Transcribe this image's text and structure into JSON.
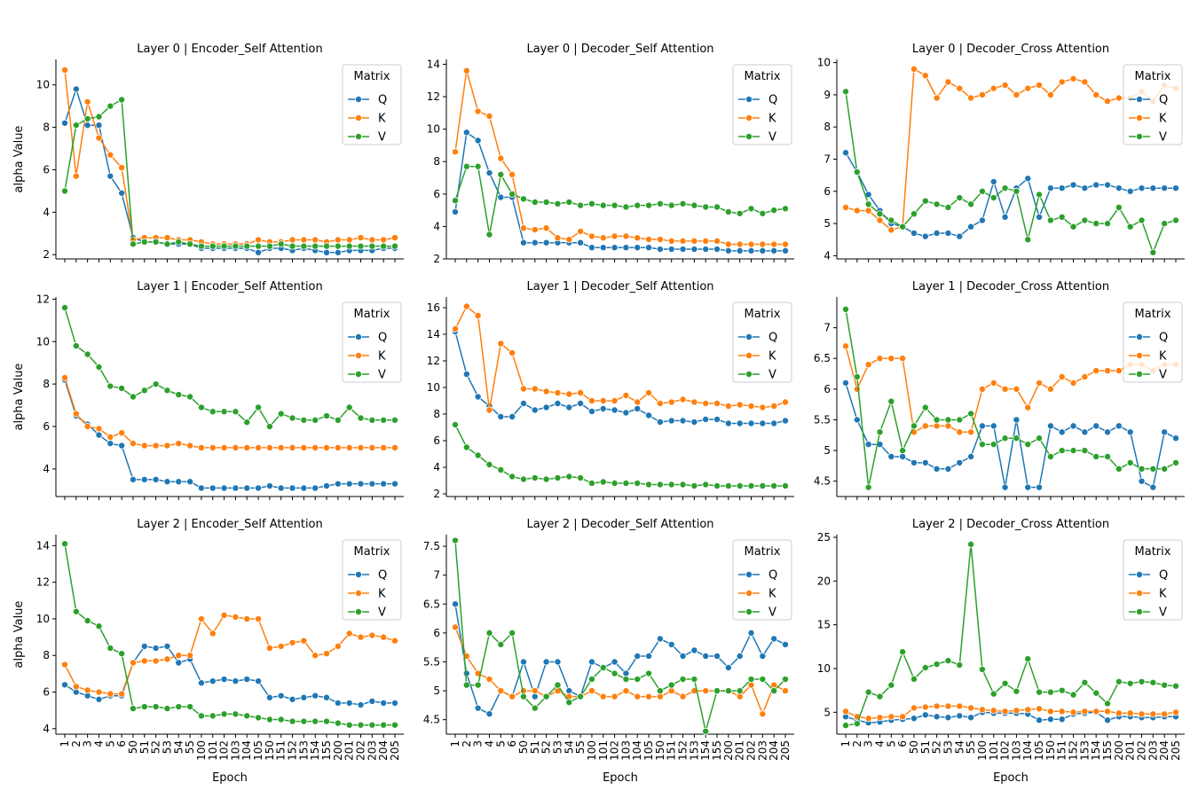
{
  "colors": {
    "Q": "#1f77b4",
    "K": "#ff7f0e",
    "V": "#2ca02c"
  },
  "legend_title": "Matrix",
  "x_categories": [
    "1",
    "2",
    "3",
    "4",
    "5",
    "6",
    "50",
    "51",
    "52",
    "53",
    "54",
    "55",
    "100",
    "101",
    "102",
    "103",
    "104",
    "105",
    "150",
    "151",
    "152",
    "153",
    "154",
    "155",
    "200",
    "201",
    "202",
    "203",
    "204",
    "205"
  ],
  "chart_data": [
    {
      "type": "line",
      "title": "Layer 0 | Encoder_Self Attention",
      "xlabel": "",
      "ylabel": "alpha Value",
      "ylim": [
        1.8,
        11.2
      ],
      "yticks": [
        2,
        4,
        6,
        8,
        10
      ],
      "legend": "top-right",
      "series": [
        {
          "name": "Q",
          "values": [
            8.2,
            9.8,
            8.1,
            8.1,
            5.7,
            4.9,
            2.8,
            2.6,
            2.6,
            2.5,
            2.5,
            2.5,
            2.3,
            2.3,
            2.3,
            2.3,
            2.3,
            2.1,
            2.3,
            2.3,
            2.2,
            2.3,
            2.2,
            2.1,
            2.1,
            2.2,
            2.2,
            2.2,
            2.3,
            2.3
          ]
        },
        {
          "name": "K",
          "values": [
            10.7,
            5.7,
            9.2,
            7.5,
            6.7,
            6.1,
            2.7,
            2.8,
            2.8,
            2.8,
            2.7,
            2.7,
            2.6,
            2.5,
            2.5,
            2.5,
            2.5,
            2.7,
            2.6,
            2.6,
            2.7,
            2.7,
            2.7,
            2.6,
            2.7,
            2.7,
            2.8,
            2.7,
            2.7,
            2.8
          ]
        },
        {
          "name": "V",
          "values": [
            5.0,
            8.1,
            8.4,
            8.5,
            9.0,
            9.3,
            2.5,
            2.6,
            2.6,
            2.5,
            2.6,
            2.5,
            2.4,
            2.4,
            2.4,
            2.4,
            2.4,
            2.4,
            2.4,
            2.5,
            2.4,
            2.4,
            2.4,
            2.4,
            2.4,
            2.4,
            2.4,
            2.4,
            2.4,
            2.4
          ]
        }
      ]
    },
    {
      "type": "line",
      "title": "Layer 0 | Decoder_Self Attention",
      "xlabel": "",
      "ylabel": "",
      "ylim": [
        2,
        14.3
      ],
      "yticks": [
        2,
        4,
        6,
        8,
        10,
        12,
        14
      ],
      "legend": "top-right",
      "series": [
        {
          "name": "Q",
          "values": [
            4.9,
            9.8,
            9.3,
            7.3,
            5.8,
            5.8,
            3.0,
            3.0,
            3.0,
            3.0,
            3.0,
            3.0,
            2.7,
            2.7,
            2.7,
            2.7,
            2.7,
            2.7,
            2.6,
            2.6,
            2.6,
            2.6,
            2.6,
            2.6,
            2.5,
            2.5,
            2.5,
            2.5,
            2.5,
            2.5
          ]
        },
        {
          "name": "K",
          "values": [
            8.6,
            13.6,
            11.1,
            10.8,
            8.2,
            7.2,
            3.9,
            3.8,
            3.9,
            3.3,
            3.2,
            3.7,
            3.4,
            3.3,
            3.4,
            3.4,
            3.3,
            3.2,
            3.2,
            3.1,
            3.1,
            3.1,
            3.1,
            3.1,
            2.9,
            2.9,
            2.9,
            2.9,
            2.9,
            2.9
          ]
        },
        {
          "name": "V",
          "values": [
            5.6,
            7.7,
            7.7,
            3.5,
            7.2,
            6.0,
            5.7,
            5.5,
            5.5,
            5.4,
            5.5,
            5.3,
            5.4,
            5.3,
            5.3,
            5.2,
            5.3,
            5.3,
            5.4,
            5.3,
            5.4,
            5.3,
            5.2,
            5.2,
            4.9,
            4.8,
            5.1,
            4.8,
            5.0,
            5.1
          ]
        }
      ]
    },
    {
      "type": "line",
      "title": "Layer 0 | Decoder_Cross Attention",
      "xlabel": "",
      "ylabel": "",
      "ylim": [
        3.9,
        10.1
      ],
      "yticks": [
        4,
        5,
        6,
        7,
        8,
        9,
        10
      ],
      "legend": "top-right",
      "series": [
        {
          "name": "Q",
          "values": [
            7.2,
            6.6,
            5.9,
            5.4,
            5.0,
            4.9,
            4.7,
            4.6,
            4.7,
            4.7,
            4.6,
            4.9,
            5.1,
            6.3,
            5.2,
            6.1,
            6.4,
            5.2,
            6.1,
            6.1,
            6.2,
            6.1,
            6.2,
            6.2,
            6.1,
            6.0,
            6.1,
            6.1,
            6.1,
            6.1
          ]
        },
        {
          "name": "K",
          "values": [
            5.5,
            5.4,
            5.4,
            5.1,
            4.8,
            4.9,
            9.8,
            9.6,
            8.9,
            9.4,
            9.2,
            8.9,
            9.0,
            9.2,
            9.3,
            9.0,
            9.2,
            9.3,
            9.0,
            9.4,
            9.5,
            9.4,
            9.0,
            8.8,
            8.9,
            8.9,
            9.1,
            8.8,
            9.3,
            9.2
          ]
        },
        {
          "name": "V",
          "values": [
            9.1,
            6.6,
            5.6,
            5.3,
            5.1,
            4.9,
            5.3,
            5.7,
            5.6,
            5.5,
            5.8,
            5.6,
            6.0,
            5.8,
            6.1,
            6.0,
            4.5,
            5.9,
            5.1,
            5.2,
            4.9,
            5.1,
            5.0,
            5.0,
            5.5,
            4.9,
            5.1,
            4.1,
            5.0,
            5.1
          ]
        }
      ]
    },
    {
      "type": "line",
      "title": "Layer 1 | Encoder_Self Attention",
      "xlabel": "",
      "ylabel": "alpha Value",
      "ylim": [
        2.7,
        12.1
      ],
      "yticks": [
        4,
        6,
        8,
        10,
        12
      ],
      "legend": "top-right",
      "series": [
        {
          "name": "Q",
          "values": [
            8.2,
            6.5,
            6.1,
            5.6,
            5.2,
            5.1,
            3.5,
            3.5,
            3.5,
            3.4,
            3.4,
            3.4,
            3.1,
            3.1,
            3.1,
            3.1,
            3.1,
            3.1,
            3.2,
            3.1,
            3.1,
            3.1,
            3.1,
            3.2,
            3.3,
            3.3,
            3.3,
            3.3,
            3.3,
            3.3
          ]
        },
        {
          "name": "K",
          "values": [
            8.3,
            6.6,
            6.0,
            5.9,
            5.5,
            5.7,
            5.2,
            5.1,
            5.1,
            5.1,
            5.2,
            5.1,
            5.0,
            5.0,
            5.0,
            5.0,
            5.0,
            5.0,
            5.0,
            5.0,
            5.0,
            5.0,
            5.0,
            5.0,
            5.0,
            5.0,
            5.0,
            5.0,
            5.0,
            5.0
          ]
        },
        {
          "name": "V",
          "values": [
            11.6,
            9.8,
            9.4,
            8.8,
            7.9,
            7.8,
            7.4,
            7.7,
            8.0,
            7.7,
            7.5,
            7.4,
            6.9,
            6.7,
            6.7,
            6.7,
            6.2,
            6.9,
            6.0,
            6.6,
            6.4,
            6.3,
            6.3,
            6.5,
            6.3,
            6.9,
            6.4,
            6.3,
            6.3,
            6.3
          ]
        }
      ]
    },
    {
      "type": "line",
      "title": "Layer 1 | Decoder_Self Attention",
      "xlabel": "",
      "ylabel": "",
      "ylim": [
        1.8,
        16.8
      ],
      "yticks": [
        2,
        4,
        6,
        8,
        10,
        12,
        14,
        16
      ],
      "legend": "top-right",
      "series": [
        {
          "name": "Q",
          "values": [
            14.2,
            11.0,
            9.3,
            8.6,
            7.8,
            7.8,
            8.8,
            8.3,
            8.5,
            8.8,
            8.5,
            8.8,
            8.2,
            8.4,
            8.3,
            8.1,
            8.4,
            7.9,
            7.4,
            7.5,
            7.5,
            7.4,
            7.6,
            7.6,
            7.3,
            7.3,
            7.3,
            7.3,
            7.3,
            7.5
          ]
        },
        {
          "name": "K",
          "values": [
            14.4,
            16.1,
            15.4,
            8.3,
            13.3,
            12.6,
            9.9,
            9.9,
            9.7,
            9.6,
            9.5,
            9.6,
            9.0,
            9.0,
            9.0,
            9.4,
            8.9,
            9.6,
            8.8,
            8.9,
            9.1,
            8.9,
            8.8,
            8.8,
            8.6,
            8.7,
            8.6,
            8.5,
            8.6,
            8.9
          ]
        },
        {
          "name": "V",
          "values": [
            7.2,
            5.5,
            4.9,
            4.2,
            3.8,
            3.3,
            3.1,
            3.2,
            3.1,
            3.2,
            3.3,
            3.2,
            2.8,
            2.9,
            2.8,
            2.8,
            2.8,
            2.7,
            2.7,
            2.7,
            2.7,
            2.6,
            2.7,
            2.6,
            2.6,
            2.6,
            2.6,
            2.6,
            2.6,
            2.6
          ]
        }
      ]
    },
    {
      "type": "line",
      "title": "Layer 1 | Decoder_Cross Attention",
      "xlabel": "",
      "ylabel": "",
      "ylim": [
        4.25,
        7.5
      ],
      "yticks": [
        4.5,
        5.0,
        5.5,
        6.0,
        6.5,
        7.0
      ],
      "legend": "top-right",
      "series": [
        {
          "name": "Q",
          "values": [
            6.1,
            5.5,
            5.1,
            5.1,
            4.9,
            4.9,
            4.8,
            4.8,
            4.7,
            4.7,
            4.8,
            4.9,
            5.4,
            5.4,
            4.4,
            5.5,
            4.4,
            4.4,
            5.4,
            5.3,
            5.4,
            5.3,
            5.4,
            5.3,
            5.4,
            5.3,
            4.5,
            4.4,
            5.3,
            5.2
          ]
        },
        {
          "name": "K",
          "values": [
            6.7,
            6.0,
            6.4,
            6.5,
            6.5,
            6.5,
            5.3,
            5.4,
            5.4,
            5.4,
            5.3,
            5.3,
            6.0,
            6.1,
            6.0,
            6.0,
            5.7,
            6.1,
            6.0,
            6.2,
            6.1,
            6.2,
            6.3,
            6.3,
            6.3,
            6.4,
            6.4,
            6.3,
            6.4,
            6.4
          ]
        },
        {
          "name": "V",
          "values": [
            7.3,
            6.2,
            4.4,
            5.3,
            5.8,
            5.0,
            5.4,
            5.7,
            5.5,
            5.5,
            5.5,
            5.6,
            5.1,
            5.1,
            5.2,
            5.2,
            5.1,
            5.2,
            4.9,
            5.0,
            5.0,
            5.0,
            4.9,
            4.9,
            4.7,
            4.8,
            4.7,
            4.7,
            4.7,
            4.8
          ]
        }
      ]
    },
    {
      "type": "line",
      "title": "Layer 2 | Encoder_Self Attention",
      "xlabel": "Epoch",
      "ylabel": "alpha Value",
      "ylim": [
        3.7,
        14.6
      ],
      "yticks": [
        4,
        6,
        8,
        10,
        12,
        14
      ],
      "legend": "top-right",
      "series": [
        {
          "name": "Q",
          "values": [
            6.4,
            6.0,
            5.8,
            5.6,
            5.8,
            5.8,
            7.6,
            8.5,
            8.4,
            8.5,
            7.6,
            7.8,
            6.5,
            6.6,
            6.7,
            6.6,
            6.7,
            6.6,
            5.7,
            5.8,
            5.6,
            5.7,
            5.8,
            5.7,
            5.4,
            5.4,
            5.3,
            5.5,
            5.4,
            5.4
          ]
        },
        {
          "name": "K",
          "values": [
            7.5,
            6.3,
            6.1,
            6.0,
            5.9,
            5.9,
            7.6,
            7.7,
            7.7,
            7.8,
            8.0,
            8.0,
            10.0,
            9.2,
            10.2,
            10.1,
            10.0,
            10.0,
            8.4,
            8.5,
            8.7,
            8.8,
            8.0,
            8.1,
            8.5,
            9.2,
            9.0,
            9.1,
            9.0,
            8.8
          ]
        },
        {
          "name": "V",
          "values": [
            14.1,
            10.4,
            9.9,
            9.6,
            8.4,
            8.1,
            5.1,
            5.2,
            5.2,
            5.1,
            5.2,
            5.2,
            4.7,
            4.7,
            4.8,
            4.8,
            4.7,
            4.6,
            4.5,
            4.5,
            4.4,
            4.4,
            4.4,
            4.4,
            4.3,
            4.2,
            4.2,
            4.2,
            4.2,
            4.2
          ]
        }
      ]
    },
    {
      "type": "line",
      "title": "Layer 2 | Decoder_Self Attention",
      "xlabel": "Epoch",
      "ylabel": "",
      "ylim": [
        4.25,
        7.7
      ],
      "yticks": [
        4.5,
        5.0,
        5.5,
        6.0,
        6.5,
        7.0,
        7.5
      ],
      "legend": "top-right",
      "series": [
        {
          "name": "Q",
          "values": [
            6.5,
            5.3,
            4.7,
            4.6,
            5.0,
            4.9,
            5.5,
            4.9,
            5.5,
            5.5,
            5.0,
            4.9,
            5.5,
            5.4,
            5.5,
            5.3,
            5.6,
            5.6,
            5.9,
            5.8,
            5.6,
            5.7,
            5.6,
            5.6,
            5.4,
            5.6,
            6.0,
            5.6,
            5.9,
            5.8
          ]
        },
        {
          "name": "K",
          "values": [
            6.1,
            5.6,
            5.3,
            5.2,
            5.0,
            4.9,
            5.0,
            5.0,
            4.9,
            5.0,
            4.9,
            4.9,
            5.0,
            4.9,
            4.9,
            5.0,
            4.9,
            4.9,
            4.9,
            5.0,
            4.9,
            5.0,
            5.0,
            5.0,
            5.0,
            4.9,
            5.1,
            4.6,
            5.1,
            5.0
          ]
        },
        {
          "name": "V",
          "values": [
            7.6,
            5.1,
            5.1,
            6.0,
            5.8,
            6.0,
            4.9,
            4.7,
            4.9,
            5.1,
            4.8,
            4.9,
            5.2,
            5.4,
            5.3,
            5.2,
            5.2,
            5.3,
            5.0,
            5.1,
            5.2,
            5.2,
            4.3,
            5.0,
            5.0,
            5.0,
            5.2,
            5.2,
            5.0,
            5.2
          ]
        }
      ]
    },
    {
      "type": "line",
      "title": "Layer 2 | Decoder_Cross Attention",
      "xlabel": "Epoch",
      "ylabel": "",
      "ylim": [
        2.5,
        25.3
      ],
      "yticks": [
        5,
        10,
        15,
        20,
        25
      ],
      "legend": "top-right",
      "series": [
        {
          "name": "Q",
          "values": [
            4.5,
            4.1,
            3.8,
            3.9,
            4.1,
            4.2,
            4.3,
            4.7,
            4.5,
            4.4,
            4.6,
            4.4,
            5.0,
            4.9,
            4.9,
            4.9,
            4.8,
            4.1,
            4.2,
            4.2,
            4.8,
            4.9,
            5.0,
            4.1,
            4.5,
            4.5,
            4.4,
            4.4,
            4.5,
            4.5
          ]
        },
        {
          "name": "K",
          "values": [
            5.1,
            4.5,
            4.3,
            4.4,
            4.5,
            4.5,
            5.5,
            5.6,
            5.7,
            5.7,
            5.7,
            5.5,
            5.3,
            5.2,
            5.1,
            5.2,
            5.3,
            5.4,
            5.1,
            5.1,
            5.0,
            5.1,
            5.1,
            5.1,
            4.9,
            4.9,
            4.8,
            4.8,
            4.8,
            5.0
          ]
        },
        {
          "name": "V",
          "values": [
            3.5,
            3.7,
            7.3,
            6.8,
            8.1,
            11.9,
            8.8,
            10.1,
            10.5,
            10.9,
            10.4,
            24.2,
            9.9,
            7.1,
            8.3,
            7.4,
            11.1,
            7.3,
            7.3,
            7.5,
            7.0,
            8.4,
            7.2,
            6.0,
            8.5,
            8.3,
            8.5,
            8.4,
            8.1,
            8.0
          ]
        }
      ]
    }
  ]
}
